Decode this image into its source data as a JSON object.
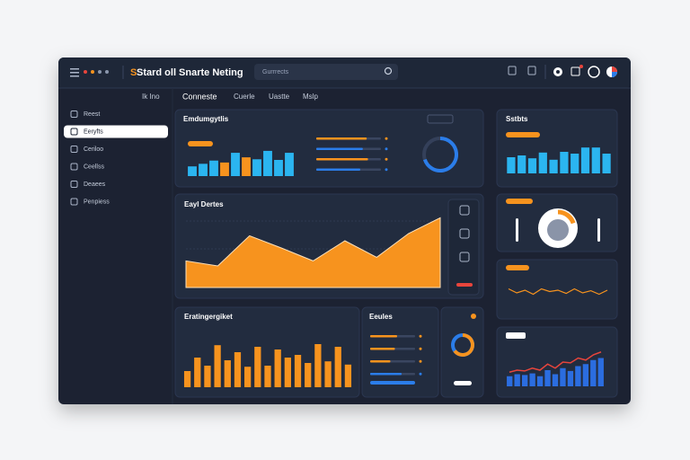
{
  "header": {
    "title": "Stard oll Snarte Neting",
    "search": "Gurrrects"
  },
  "nav": [
    "Ik Ino",
    "Conneste",
    "Cuerle",
    "Uastte",
    "Mslp"
  ],
  "sidebar": {
    "items": [
      "Reest",
      "Eeryfts",
      "Ceriloo",
      "Ceellss",
      "Deaees",
      "Penpiess"
    ],
    "active": 1
  },
  "panels": {
    "overview": {
      "title": "Emdumgytlis",
      "bars": {
        "values": [
          30,
          38,
          48,
          42,
          72,
          58,
          52,
          78,
          50,
          72
        ],
        "ylim": [
          0,
          100
        ],
        "colors": [
          "#2bb5f0",
          "#2bb5f0",
          "#2bb5f0",
          "#f7931e",
          "#2bb5f0",
          "#f7931e",
          "#2bb5f0",
          "#2bb5f0",
          "#2bb5f0",
          "#2bb5f0"
        ]
      },
      "progress": {
        "values": [
          78,
          72,
          80,
          68
        ],
        "colors": [
          "#f7931e",
          "#2b7de9",
          "#f7931e",
          "#2b7de9"
        ]
      },
      "donut": {
        "value": 70,
        "color": "#2b7de9"
      }
    },
    "stats": {
      "title": "Sstbts",
      "bars": {
        "values": [
          45,
          50,
          42,
          58,
          38,
          60,
          55,
          72,
          72,
          55
        ],
        "ylim": [
          0,
          100
        ],
        "color": "#2bb5f0"
      }
    },
    "daily": {
      "title": "Eayl Dertes",
      "area": {
        "values": [
          37,
          30,
          72,
          55,
          37,
          65,
          42,
          75,
          97
        ],
        "ylim": [
          0,
          100
        ],
        "color": "#f7931e"
      }
    },
    "gauge": {
      "value": 20,
      "color": "#f7931e"
    },
    "trend": {
      "line": {
        "values": [
          55,
          40,
          50,
          35,
          55,
          45,
          50,
          38,
          55,
          40,
          48,
          35,
          50
        ],
        "ylim": [
          0,
          100
        ],
        "color": "#f7931e"
      }
    },
    "weekly": {
      "title": "Eratingergiket",
      "bars": {
        "values": [
          30,
          55,
          40,
          78,
          50,
          65,
          38,
          75,
          40,
          70,
          55,
          60,
          45,
          80,
          48,
          75,
          42
        ],
        "ylim": [
          0,
          100
        ],
        "color": "#f7931e"
      }
    },
    "list": {
      "title": "Eeules",
      "progress": {
        "values": [
          60,
          55,
          45,
          70
        ],
        "colors": [
          "#f7931e",
          "#f7931e",
          "#f7931e",
          "#2b7de9"
        ]
      }
    },
    "ring": {
      "value": 65,
      "color": "#f7931e"
    },
    "combo": {
      "bars": {
        "values": [
          25,
          30,
          28,
          32,
          25,
          40,
          30,
          45,
          38,
          50,
          55,
          65,
          70
        ],
        "ylim": [
          0,
          100
        ],
        "color": "#2b6de0"
      },
      "line": {
        "values": [
          35,
          40,
          38,
          45,
          40,
          55,
          45,
          60,
          58,
          70,
          65,
          78,
          85
        ],
        "ylim": [
          0,
          100
        ],
        "color": "#e8453c"
      }
    }
  }
}
